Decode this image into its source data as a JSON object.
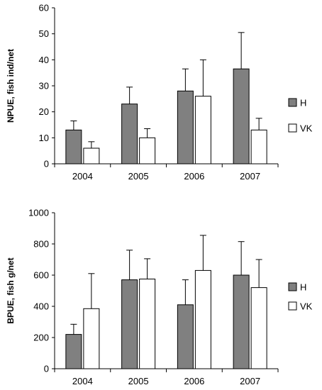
{
  "colors": {
    "H": "#808080",
    "VK": "#ffffff",
    "axis": "#000000"
  },
  "chart_data": [
    {
      "type": "bar",
      "ylabel": "NPUE, fish ind/net",
      "categories": [
        "2004",
        "2005",
        "2006",
        "2007"
      ],
      "ylim": [
        0,
        60
      ],
      "yticks": [
        "0",
        "10",
        "20",
        "30",
        "40",
        "50",
        "60"
      ],
      "series": [
        {
          "name": "H",
          "values": [
            13,
            23,
            28,
            36.5
          ],
          "errors": [
            3.5,
            6.5,
            8.5,
            14
          ]
        },
        {
          "name": "VK",
          "values": [
            6,
            10,
            26,
            13
          ],
          "errors": [
            2.5,
            3.5,
            14,
            4.5
          ]
        }
      ],
      "legend": "right"
    },
    {
      "type": "bar",
      "ylabel": "BPUE, fish g/net",
      "categories": [
        "2004",
        "2005",
        "2006",
        "2007"
      ],
      "ylim": [
        0,
        1000
      ],
      "yticks": [
        "0",
        "200",
        "400",
        "600",
        "800",
        "1000"
      ],
      "series": [
        {
          "name": "H",
          "values": [
            220,
            570,
            410,
            600
          ],
          "errors": [
            65,
            190,
            160,
            215
          ]
        },
        {
          "name": "VK",
          "values": [
            385,
            575,
            630,
            520
          ],
          "errors": [
            225,
            130,
            225,
            180
          ]
        }
      ],
      "legend": "right"
    }
  ]
}
